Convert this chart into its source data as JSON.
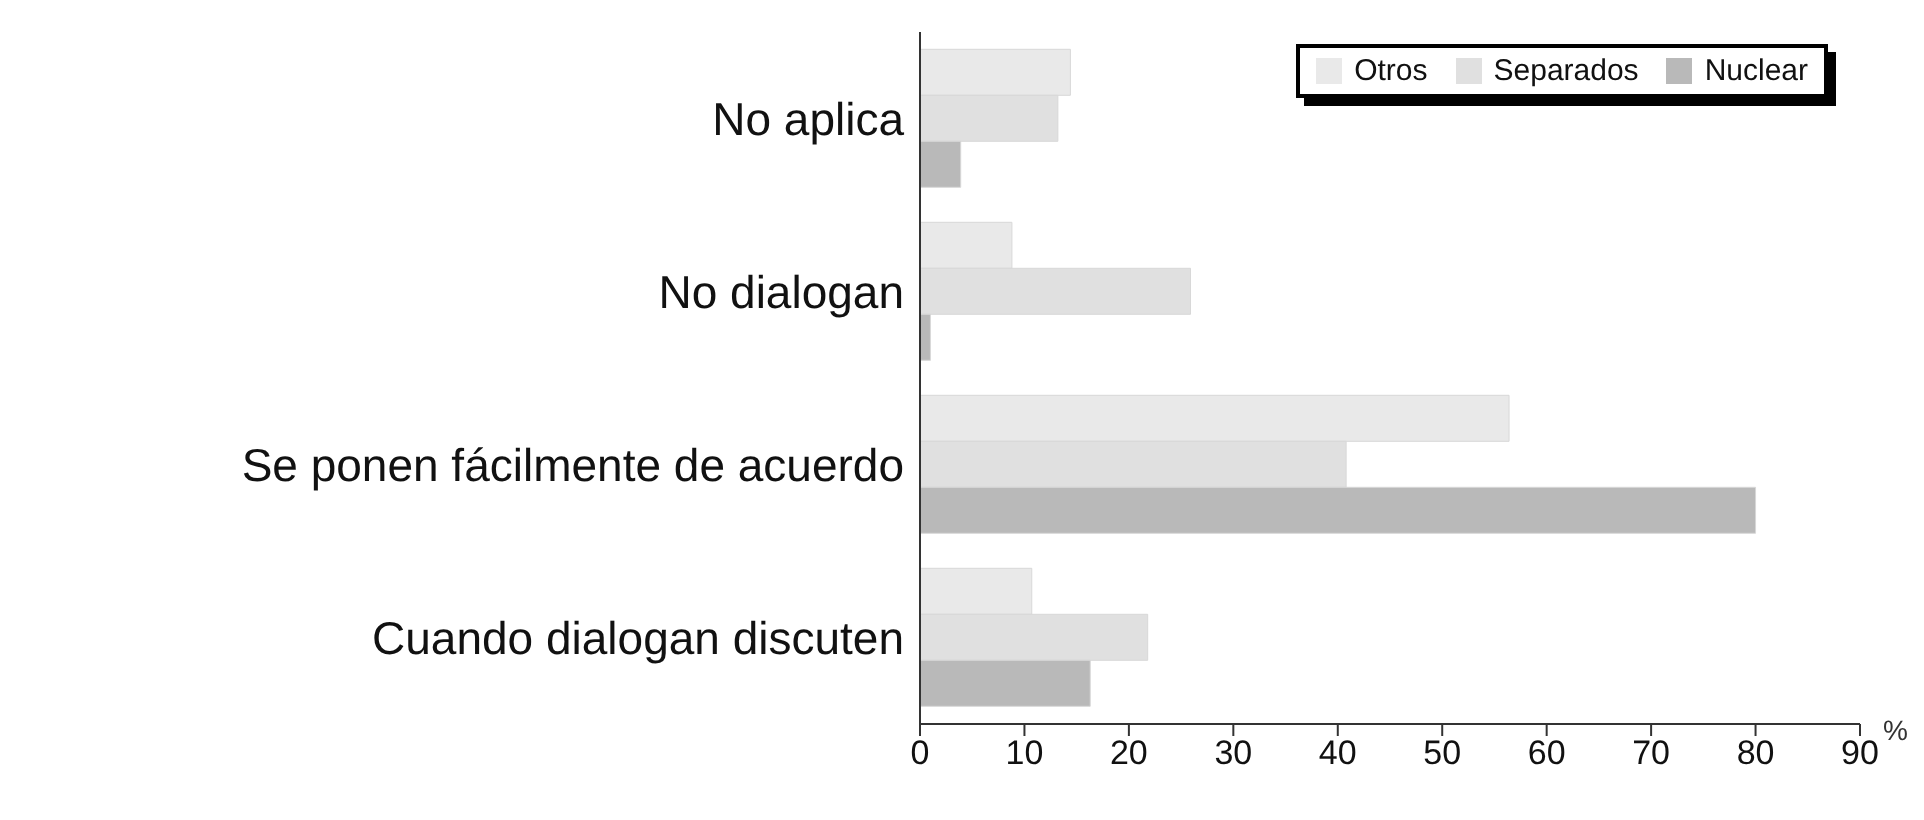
{
  "chart_data": {
    "type": "bar",
    "orientation": "horizontal",
    "categories": [
      "No aplica",
      "No dialogan",
      "Se ponen fácilmente de acuerdo",
      "Cuando dialogan discuten"
    ],
    "series": [
      {
        "name": "Otros",
        "color": "#e9e9e9",
        "values": [
          14.4,
          8.8,
          56.4,
          10.7
        ]
      },
      {
        "name": "Separados",
        "color": "#e0e0e0",
        "values": [
          13.2,
          25.9,
          40.8,
          21.8
        ]
      },
      {
        "name": "Nuclear",
        "color": "#b9b9b9",
        "values": [
          3.9,
          1,
          80,
          16.3
        ]
      }
    ],
    "xlabel": "%",
    "xlim": [
      0,
      90
    ],
    "xticks": [
      0,
      10,
      20,
      30,
      40,
      50,
      60,
      70,
      80,
      90
    ],
    "grid": false,
    "legend": "top right"
  }
}
